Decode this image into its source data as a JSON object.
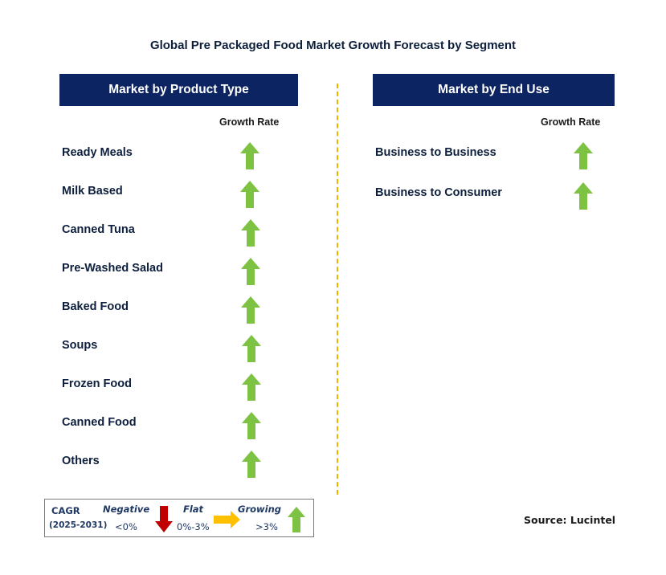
{
  "title": "Global Pre Packaged Food Market Growth Forecast by Segment",
  "colors": {
    "header": "#0c2461",
    "growing": "#7dc242",
    "negative": "#c00000",
    "flat": "#ffc000",
    "divider": "#f0b400"
  },
  "chart_data": {
    "type": "table",
    "panels": [
      {
        "header": "Market by Product Type",
        "column_header": "Growth Rate",
        "rows": [
          {
            "label": "Ready Meals",
            "trend": "growing"
          },
          {
            "label": "Milk Based",
            "trend": "growing"
          },
          {
            "label": "Canned Tuna",
            "trend": "growing"
          },
          {
            "label": "Pre-Washed Salad",
            "trend": "growing"
          },
          {
            "label": "Baked Food",
            "trend": "growing"
          },
          {
            "label": "Soups",
            "trend": "growing"
          },
          {
            "label": "Frozen Food",
            "trend": "growing"
          },
          {
            "label": "Canned Food",
            "trend": "growing"
          },
          {
            "label": "Others",
            "trend": "growing"
          }
        ]
      },
      {
        "header": "Market by End Use",
        "column_header": "Growth Rate",
        "rows": [
          {
            "label": "Business to Business",
            "trend": "growing"
          },
          {
            "label": "Business to Consumer",
            "trend": "growing"
          }
        ]
      }
    ]
  },
  "legend": {
    "cagr": "CAGR",
    "period": "(2025-2031)",
    "negative_label": "Negative",
    "negative_range": "<0%",
    "flat_label": "Flat",
    "flat_range": "0%-3%",
    "growing_label": "Growing",
    "growing_range": ">3%"
  },
  "source": "Source: Lucintel"
}
